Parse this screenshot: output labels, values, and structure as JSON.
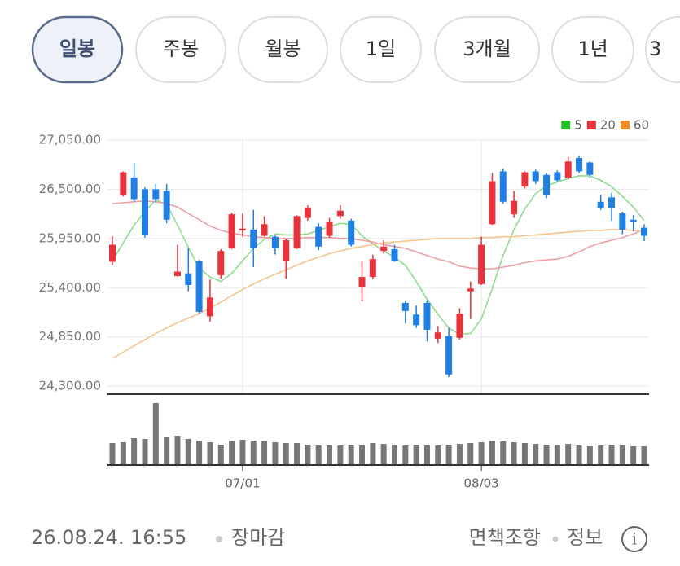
{
  "tabs": [
    "일봉",
    "주봉",
    "월봉",
    "1일",
    "3개월",
    "1년",
    "3"
  ],
  "chart_data": {
    "type": "candlestick",
    "categories": [
      null,
      null,
      null,
      null,
      null,
      null,
      null,
      null,
      null,
      null,
      null,
      null,
      "07/01",
      null,
      null,
      null,
      null,
      null,
      null,
      null,
      null,
      null,
      null,
      null,
      null,
      null,
      null,
      null,
      null,
      null,
      null,
      null,
      null,
      null,
      "08/03",
      null,
      null,
      null,
      null,
      null,
      null,
      null,
      null,
      null,
      null,
      null,
      null,
      null,
      null,
      null
    ],
    "open": [
      25690,
      26430,
      26630,
      26500,
      26500,
      26480,
      25530,
      25560,
      25700,
      25080,
      25540,
      25840,
      26040,
      26050,
      25980,
      25970,
      25700,
      25840,
      26180,
      26080,
      25980,
      26200,
      26150,
      25410,
      25520,
      25810,
      25830,
      25230,
      25100,
      25230,
      24830,
      24860,
      24840,
      25360,
      25440,
      26110,
      26700,
      26220,
      26530,
      26700,
      26660,
      26690,
      26630,
      26850,
      26800,
      26360,
      26410,
      26230,
      26160,
      26070
    ],
    "high": [
      25975,
      26700,
      26795,
      26520,
      26560,
      26560,
      25880,
      25840,
      25710,
      25490,
      25830,
      26240,
      26230,
      26270,
      26200,
      25990,
      25950,
      26210,
      26320,
      26120,
      26180,
      26320,
      26170,
      25700,
      25770,
      25930,
      25880,
      25250,
      25200,
      25260,
      24970,
      24950,
      25170,
      25470,
      25970,
      26680,
      26730,
      26480,
      26700,
      26720,
      26680,
      26710,
      26860,
      26870,
      26810,
      26440,
      26460,
      26250,
      26210,
      26110
    ],
    "low": [
      25650,
      26420,
      26360,
      25960,
      26350,
      26120,
      25520,
      25360,
      25110,
      25020,
      25500,
      25830,
      25970,
      25630,
      25970,
      25770,
      25500,
      25830,
      26150,
      25820,
      25960,
      26170,
      25860,
      25250,
      25500,
      25780,
      25690,
      25000,
      24950,
      24800,
      24780,
      24400,
      24820,
      25050,
      25430,
      26100,
      26340,
      26180,
      26510,
      26560,
      26400,
      26580,
      26610,
      26680,
      26620,
      26270,
      26150,
      26000,
      26030,
      25920
    ],
    "close": [
      25880,
      26690,
      26390,
      25990,
      26390,
      26160,
      25580,
      25430,
      25130,
      25290,
      25810,
      26220,
      26060,
      25840,
      26110,
      25840,
      25930,
      26200,
      26290,
      25860,
      26140,
      26260,
      25880,
      25520,
      25720,
      25860,
      25700,
      25140,
      24980,
      24930,
      24900,
      24430,
      25110,
      25390,
      25880,
      26590,
      26360,
      26370,
      26690,
      26590,
      26430,
      26600,
      26810,
      26700,
      26660,
      26290,
      26290,
      26050,
      26140,
      25980
    ],
    "up_color": "#e8323c",
    "down_color": "#1f7fe5",
    "ylim": [
      24210,
      27250
    ],
    "yticks": [
      {
        "value": 24300,
        "label": "24,300.00"
      },
      {
        "value": 24850,
        "label": "24,850.00"
      },
      {
        "value": 25400,
        "label": "25,400.00"
      },
      {
        "value": 25950,
        "label": "25,950.00"
      },
      {
        "value": 26500,
        "label": "26,500.00"
      },
      {
        "value": 27050,
        "label": "27,050.00"
      }
    ],
    "grid": true,
    "legend": "top-right",
    "series": [
      {
        "name": "5",
        "color": "#22c02a",
        "line_color": "#8fdc8f",
        "values": [
          25700,
          25900,
          26100,
          26250,
          26380,
          26330,
          26100,
          25850,
          25620,
          25520,
          25470,
          25560,
          25700,
          25840,
          25940,
          26000,
          25990,
          25990,
          26000,
          26040,
          26080,
          26120,
          26110,
          25980,
          25890,
          25810,
          25740,
          25650,
          25470,
          25270,
          25100,
          24950,
          24880,
          24890,
          25050,
          25390,
          25760,
          26050,
          26280,
          26450,
          26540,
          26580,
          26620,
          26650,
          26650,
          26600,
          26530,
          26420,
          26300,
          26150
        ]
      },
      {
        "name": "20",
        "color": "#e8323c",
        "line_color": "#eda0a4",
        "values": [
          26340,
          26350,
          26360,
          26370,
          26360,
          26340,
          26300,
          26230,
          26160,
          26090,
          26040,
          26010,
          25990,
          25970,
          25960,
          25950,
          25950,
          25950,
          25960,
          25960,
          25960,
          25950,
          25950,
          25930,
          25910,
          25880,
          25860,
          25840,
          25800,
          25760,
          25720,
          25690,
          25640,
          25620,
          25610,
          25610,
          25630,
          25650,
          25680,
          25700,
          25710,
          25720,
          25750,
          25800,
          25860,
          25900,
          25930,
          25960,
          26000,
          26050
        ]
      },
      {
        "name": "60",
        "color": "#f08a24",
        "line_color": "#f5c48f",
        "values": [
          24610,
          24680,
          24750,
          24820,
          24890,
          24950,
          25010,
          25060,
          25110,
          25170,
          25240,
          25310,
          25380,
          25440,
          25500,
          25550,
          25600,
          25650,
          25700,
          25740,
          25780,
          25810,
          25840,
          25860,
          25880,
          25900,
          25910,
          25920,
          25930,
          25940,
          25950,
          25950,
          25950,
          25950,
          25960,
          25960,
          25970,
          25970,
          25980,
          25990,
          26000,
          26010,
          26020,
          26030,
          26040,
          26040,
          26050,
          26050,
          26040,
          26030
        ]
      }
    ],
    "volume": {
      "color": "#777777",
      "ylim": [
        0,
        80
      ],
      "values": [
        27,
        28,
        33,
        32,
        76,
        35,
        36,
        32,
        30,
        28,
        25,
        30,
        31,
        30,
        29,
        28,
        27,
        27,
        25,
        24,
        24,
        24,
        25,
        24,
        27,
        26,
        25,
        24,
        25,
        24,
        24,
        25,
        26,
        27,
        28,
        30,
        29,
        28,
        27,
        26,
        25,
        25,
        26,
        24,
        23,
        24,
        25,
        24,
        23,
        23
      ]
    }
  },
  "footer": {
    "datetime": "26.08.24. 16:55",
    "status": "장마감",
    "disclaimer": "면책조항",
    "info": "정보"
  }
}
